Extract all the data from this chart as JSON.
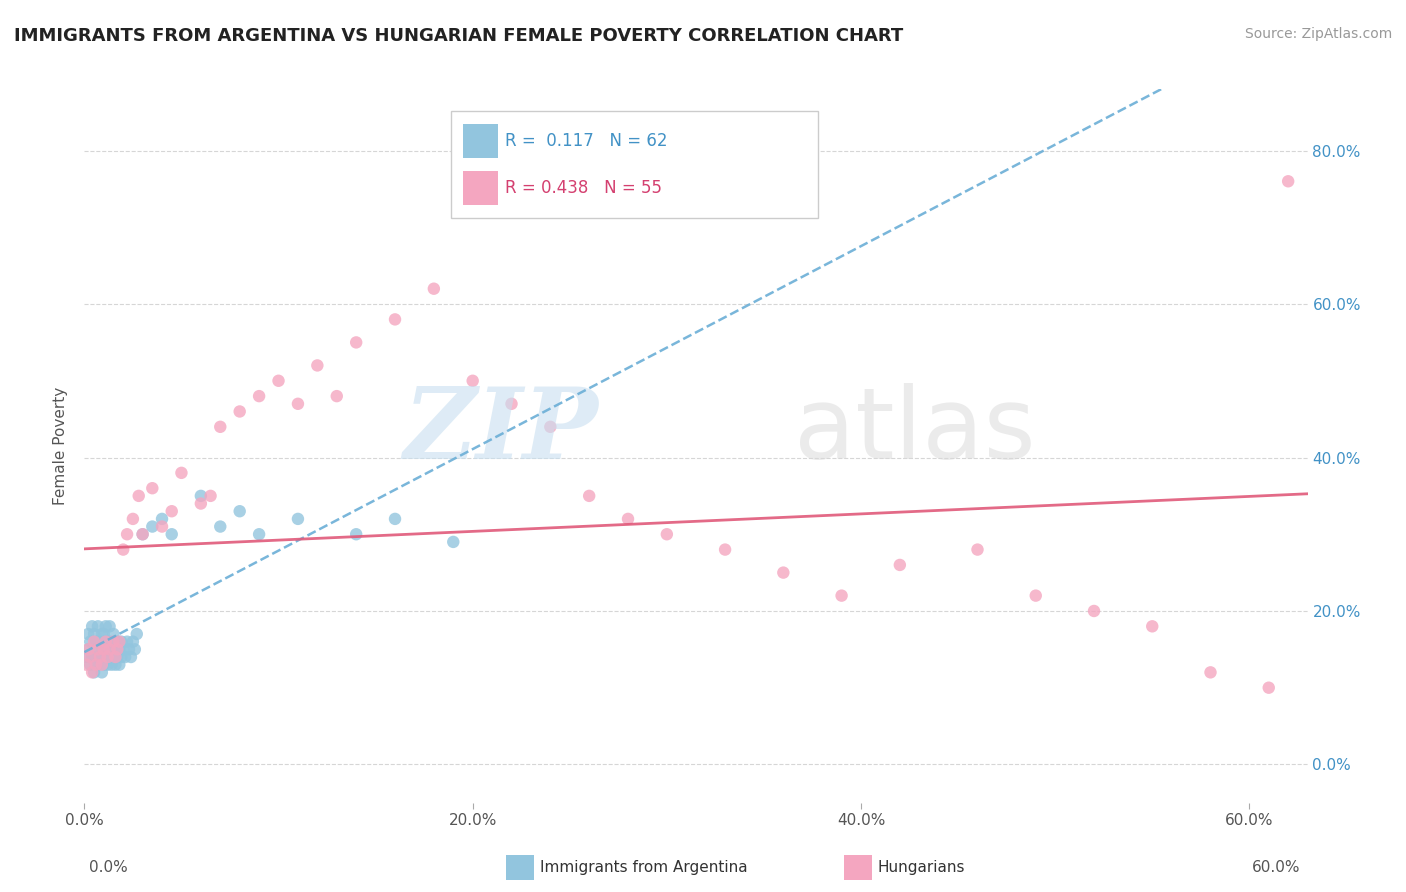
{
  "title": "IMMIGRANTS FROM ARGENTINA VS HUNGARIAN FEMALE POVERTY CORRELATION CHART",
  "source": "Source: ZipAtlas.com",
  "ylabel": "Female Poverty",
  "xlim": [
    0.0,
    0.63
  ],
  "ylim": [
    -0.05,
    0.88
  ],
  "y_ticks": [
    0.0,
    0.2,
    0.4,
    0.6,
    0.8
  ],
  "x_ticks": [
    0.0,
    0.2,
    0.4,
    0.6
  ],
  "blue_R": 0.117,
  "blue_N": 62,
  "pink_R": 0.438,
  "pink_N": 55,
  "blue_color": "#92c5de",
  "pink_color": "#f4a6c0",
  "blue_line_color": "#6baed6",
  "pink_line_color": "#e05a7a",
  "background_color": "#ffffff",
  "grid_color": "#cccccc",
  "blue_label": "Immigrants from Argentina",
  "pink_label": "Hungarians",
  "blue_x": [
    0.001,
    0.002,
    0.002,
    0.003,
    0.003,
    0.004,
    0.004,
    0.005,
    0.005,
    0.006,
    0.006,
    0.007,
    0.007,
    0.007,
    0.008,
    0.008,
    0.009,
    0.009,
    0.009,
    0.01,
    0.01,
    0.01,
    0.011,
    0.011,
    0.011,
    0.012,
    0.012,
    0.013,
    0.013,
    0.013,
    0.014,
    0.014,
    0.015,
    0.015,
    0.016,
    0.016,
    0.017,
    0.017,
    0.018,
    0.018,
    0.019,
    0.019,
    0.02,
    0.021,
    0.022,
    0.023,
    0.024,
    0.025,
    0.026,
    0.027,
    0.03,
    0.035,
    0.04,
    0.045,
    0.06,
    0.07,
    0.08,
    0.09,
    0.11,
    0.14,
    0.16,
    0.19
  ],
  "blue_y": [
    0.14,
    0.15,
    0.17,
    0.13,
    0.16,
    0.14,
    0.18,
    0.12,
    0.17,
    0.14,
    0.16,
    0.13,
    0.15,
    0.18,
    0.14,
    0.16,
    0.12,
    0.15,
    0.17,
    0.13,
    0.15,
    0.17,
    0.14,
    0.16,
    0.18,
    0.13,
    0.15,
    0.14,
    0.16,
    0.18,
    0.13,
    0.15,
    0.14,
    0.17,
    0.13,
    0.16,
    0.14,
    0.16,
    0.13,
    0.15,
    0.14,
    0.16,
    0.15,
    0.14,
    0.16,
    0.15,
    0.14,
    0.16,
    0.15,
    0.17,
    0.3,
    0.31,
    0.32,
    0.3,
    0.35,
    0.31,
    0.33,
    0.3,
    0.32,
    0.3,
    0.32,
    0.29
  ],
  "pink_x": [
    0.001,
    0.002,
    0.003,
    0.004,
    0.005,
    0.006,
    0.007,
    0.008,
    0.009,
    0.01,
    0.011,
    0.012,
    0.013,
    0.015,
    0.016,
    0.017,
    0.018,
    0.02,
    0.022,
    0.025,
    0.028,
    0.03,
    0.035,
    0.04,
    0.045,
    0.05,
    0.06,
    0.065,
    0.07,
    0.08,
    0.09,
    0.1,
    0.11,
    0.12,
    0.13,
    0.14,
    0.16,
    0.18,
    0.2,
    0.22,
    0.24,
    0.26,
    0.28,
    0.3,
    0.33,
    0.36,
    0.39,
    0.42,
    0.46,
    0.49,
    0.52,
    0.55,
    0.58,
    0.61,
    0.62
  ],
  "pink_y": [
    0.13,
    0.15,
    0.14,
    0.12,
    0.16,
    0.13,
    0.15,
    0.14,
    0.13,
    0.15,
    0.16,
    0.14,
    0.15,
    0.16,
    0.14,
    0.15,
    0.16,
    0.28,
    0.3,
    0.32,
    0.35,
    0.3,
    0.36,
    0.31,
    0.33,
    0.38,
    0.34,
    0.35,
    0.44,
    0.46,
    0.48,
    0.5,
    0.47,
    0.52,
    0.48,
    0.55,
    0.58,
    0.62,
    0.5,
    0.47,
    0.44,
    0.35,
    0.32,
    0.3,
    0.28,
    0.25,
    0.22,
    0.26,
    0.28,
    0.22,
    0.2,
    0.18,
    0.12,
    0.1,
    0.76
  ]
}
